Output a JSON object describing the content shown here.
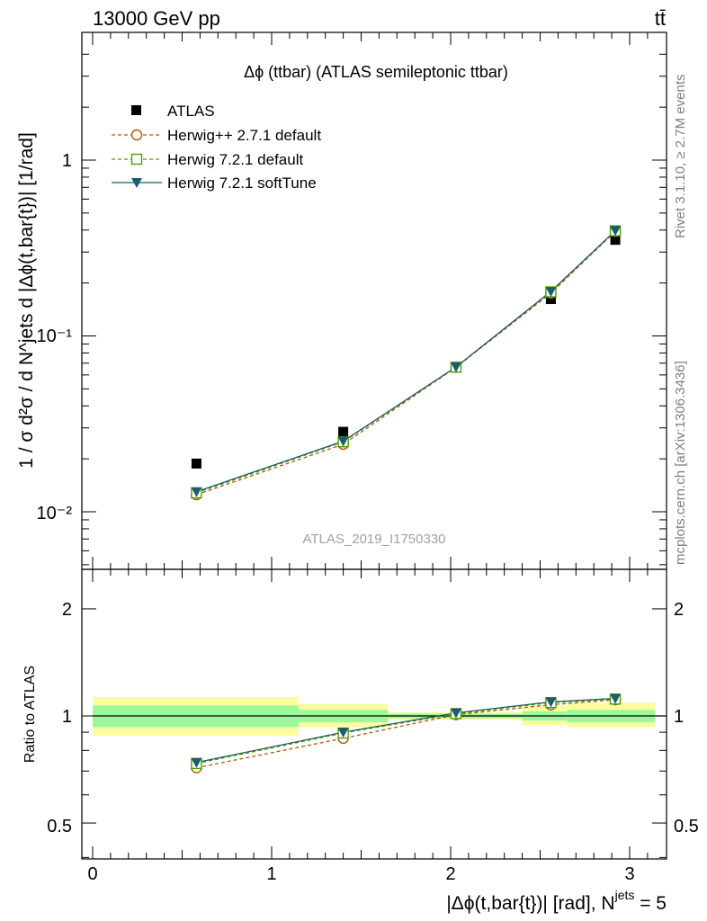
{
  "header": {
    "energy_label": "13000 GeV pp",
    "process_label": "tt̄"
  },
  "side_labels": {
    "rivet": "Rivet 3.1.10, ≥ 2.7M events",
    "mcplots": "mcplots.cern.ch [arXiv:1306.3436]"
  },
  "colors": {
    "data": "#000000",
    "herwigpp": "#b35900",
    "herwig721": "#4c9e00",
    "softtune": "#1d5b6e",
    "band_stat": "#9bf99b",
    "band_total": "#fdfda0"
  },
  "chart_data": [
    {
      "type": "scatter",
      "title": "Δϕ (ttbar) (ATLAS semileptonic ttbar)",
      "ylabel": "1 / σ d²σ / d N^jets d |Δϕ(t,bar{t})| [1/rad]",
      "yscale": "log",
      "ylim": [
        0.005,
        4.0
      ],
      "xlim": [
        -0.08,
        3.2
      ],
      "yticklabels": [
        "10⁻²",
        "10⁻¹",
        "1"
      ],
      "analysis_label": "ATLAS_2019_I1750330",
      "legend_position": "top-left",
      "bins": [
        [
          0.0,
          1.15
        ],
        [
          1.15,
          1.65
        ],
        [
          1.65,
          2.4
        ],
        [
          2.4,
          2.65
        ],
        [
          2.65,
          3.1416
        ]
      ],
      "x": [
        0.58,
        1.4,
        2.03,
        2.56,
        2.92
      ],
      "series": [
        {
          "name": "ATLAS",
          "marker": "square",
          "values": [
            0.0188,
            0.0285,
            0.0665,
            0.162,
            0.352
          ]
        },
        {
          "name": "Herwig++ 2.7.1 default",
          "marker": "circle",
          "line": "dashed",
          "values": [
            0.0125,
            0.0242,
            0.0663,
            0.175,
            0.393
          ]
        },
        {
          "name": "Herwig 7.2.1 default",
          "marker": "open-square",
          "line": "dashed",
          "values": [
            0.0128,
            0.025,
            0.0664,
            0.178,
            0.396
          ]
        },
        {
          "name": "Herwig 7.2.1 softTune",
          "marker": "triangle-down",
          "line": "solid",
          "values": [
            0.013,
            0.0252,
            0.0666,
            0.179,
            0.397
          ]
        }
      ]
    },
    {
      "type": "line",
      "ylabel": "Ratio to ATLAS",
      "xlabel_main": "|Δϕ(t,bar{t})| [rad], N",
      "xlabel_sup": "jets",
      "xlabel_tail": " = 5",
      "ylim": [
        0.3,
        2.4
      ],
      "yticklabels": [
        "0.5",
        "1",
        "2"
      ],
      "xticklabels": [
        "0",
        "1",
        "2",
        "3"
      ],
      "band_stat": [
        [
          0.93,
          1.07
        ],
        [
          0.96,
          1.04
        ],
        [
          0.985,
          1.015
        ],
        [
          0.97,
          1.03
        ],
        [
          0.96,
          1.04
        ]
      ],
      "band_total": [
        [
          0.88,
          1.13
        ],
        [
          0.93,
          1.08
        ],
        [
          0.975,
          1.025
        ],
        [
          0.94,
          1.07
        ],
        [
          0.93,
          1.09
        ]
      ],
      "x": [
        0.58,
        1.4,
        2.03,
        2.56,
        2.92
      ],
      "series": [
        {
          "name": "Herwig++ 2.7.1 default",
          "values": [
            0.715,
            0.865,
            1.008,
            1.075,
            1.11
          ]
        },
        {
          "name": "Herwig 7.2.1 default",
          "values": [
            0.735,
            0.895,
            1.015,
            1.09,
            1.115
          ]
        },
        {
          "name": "Herwig 7.2.1 softTune",
          "values": [
            0.74,
            0.9,
            1.02,
            1.095,
            1.12
          ]
        }
      ]
    }
  ]
}
